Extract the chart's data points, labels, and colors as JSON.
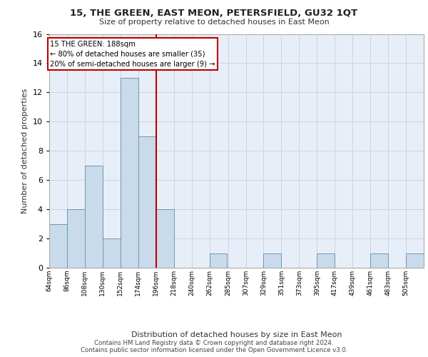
{
  "title": "15, THE GREEN, EAST MEON, PETERSFIELD, GU32 1QT",
  "subtitle": "Size of property relative to detached houses in East Meon",
  "xlabel": "Distribution of detached houses by size in East Meon",
  "ylabel": "Number of detached properties",
  "bar_values": [
    3,
    4,
    7,
    2,
    13,
    9,
    4,
    0,
    0,
    1,
    0,
    0,
    1,
    0,
    0,
    1,
    0,
    0,
    1,
    0,
    1
  ],
  "bin_edges": [
    64,
    86,
    108,
    130,
    152,
    174,
    196,
    218,
    240,
    262,
    285,
    307,
    329,
    351,
    373,
    395,
    417,
    439,
    461,
    483,
    505,
    527
  ],
  "tick_labels": [
    "64sqm",
    "86sqm",
    "108sqm",
    "130sqm",
    "152sqm",
    "174sqm",
    "196sqm",
    "218sqm",
    "240sqm",
    "262sqm",
    "285sqm",
    "307sqm",
    "329sqm",
    "351sqm",
    "373sqm",
    "395sqm",
    "417sqm",
    "439sqm",
    "461sqm",
    "483sqm",
    "505sqm"
  ],
  "bar_color": "#c9daea",
  "bar_edge_color": "#6699bb",
  "vline_x": 196,
  "vline_color": "#bb0000",
  "annotation_line1": "15 THE GREEN: 188sqm",
  "annotation_line2": "← 80% of detached houses are smaller (35)",
  "annotation_line3": "20% of semi-detached houses are larger (9) →",
  "annotation_box_color": "#bb0000",
  "ylim": [
    0,
    16
  ],
  "yticks": [
    0,
    2,
    4,
    6,
    8,
    10,
    12,
    14,
    16
  ],
  "grid_color": "#c8d4e4",
  "background_color": "#e8eef8",
  "footer1": "Contains HM Land Registry data © Crown copyright and database right 2024.",
  "footer2": "Contains public sector information licensed under the Open Government Licence v3.0."
}
